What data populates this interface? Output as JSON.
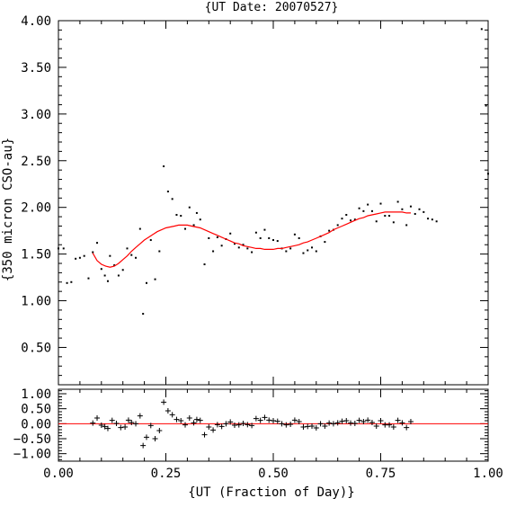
{
  "chart_data": [
    {
      "type": "scatter",
      "panel": "main",
      "title": "{UT Date: 20070527}",
      "xlabel": "",
      "ylabel": "{350 micron CSO-au}",
      "xlim": [
        0.0,
        1.0
      ],
      "ylim": [
        0.1,
        4.0
      ],
      "yticks": [
        {
          "value": 0.5,
          "label": "0.50"
        },
        {
          "value": 1.0,
          "label": "1.00"
        },
        {
          "value": 1.5,
          "label": "1.50"
        },
        {
          "value": 2.0,
          "label": "2.00"
        },
        {
          "value": 2.5,
          "label": "2.50"
        },
        {
          "value": 3.0,
          "label": "3.00"
        },
        {
          "value": 3.5,
          "label": "3.50"
        },
        {
          "value": 4.0,
          "label": "4.00"
        }
      ],
      "grid": false,
      "marker_color": "#000000",
      "fit_color": "#ff0000",
      "series": [
        {
          "marker": "dot",
          "points": [
            [
              0.0,
              1.56
            ],
            [
              0.012,
              1.56
            ],
            [
              0.02,
              1.19
            ],
            [
              0.03,
              1.2
            ],
            [
              0.04,
              1.45
            ],
            [
              0.05,
              1.46
            ],
            [
              0.06,
              1.48
            ],
            [
              0.07,
              1.24
            ],
            [
              0.08,
              1.52
            ],
            [
              0.09,
              1.62
            ],
            [
              0.1,
              1.34
            ],
            [
              0.108,
              1.27
            ],
            [
              0.115,
              1.21
            ],
            [
              0.12,
              1.48
            ],
            [
              0.13,
              1.38
            ],
            [
              0.14,
              1.27
            ],
            [
              0.15,
              1.33
            ],
            [
              0.16,
              1.56
            ],
            [
              0.17,
              1.49
            ],
            [
              0.18,
              1.46
            ],
            [
              0.19,
              1.77
            ],
            [
              0.197,
              0.86
            ],
            [
              0.205,
              1.19
            ],
            [
              0.215,
              1.65
            ],
            [
              0.225,
              1.23
            ],
            [
              0.235,
              1.53
            ],
            [
              0.245,
              2.44
            ],
            [
              0.255,
              2.17
            ],
            [
              0.265,
              2.09
            ],
            [
              0.275,
              1.92
            ],
            [
              0.285,
              1.91
            ],
            [
              0.295,
              1.77
            ],
            [
              0.305,
              2.0
            ],
            [
              0.315,
              1.81
            ],
            [
              0.322,
              1.94
            ],
            [
              0.33,
              1.87
            ],
            [
              0.34,
              1.39
            ],
            [
              0.35,
              1.67
            ],
            [
              0.36,
              1.53
            ],
            [
              0.37,
              1.68
            ],
            [
              0.38,
              1.59
            ],
            [
              0.39,
              1.66
            ],
            [
              0.4,
              1.72
            ],
            [
              0.41,
              1.61
            ],
            [
              0.42,
              1.57
            ],
            [
              0.43,
              1.6
            ],
            [
              0.44,
              1.56
            ],
            [
              0.45,
              1.52
            ],
            [
              0.46,
              1.73
            ],
            [
              0.47,
              1.67
            ],
            [
              0.48,
              1.76
            ],
            [
              0.49,
              1.67
            ],
            [
              0.5,
              1.65
            ],
            [
              0.51,
              1.64
            ],
            [
              0.52,
              1.56
            ],
            [
              0.53,
              1.53
            ],
            [
              0.54,
              1.56
            ],
            [
              0.55,
              1.71
            ],
            [
              0.56,
              1.67
            ],
            [
              0.57,
              1.51
            ],
            [
              0.58,
              1.54
            ],
            [
              0.59,
              1.57
            ],
            [
              0.6,
              1.53
            ],
            [
              0.61,
              1.69
            ],
            [
              0.62,
              1.63
            ],
            [
              0.63,
              1.75
            ],
            [
              0.64,
              1.76
            ],
            [
              0.65,
              1.81
            ],
            [
              0.66,
              1.88
            ],
            [
              0.67,
              1.92
            ],
            [
              0.68,
              1.86
            ],
            [
              0.69,
              1.87
            ],
            [
              0.7,
              1.99
            ],
            [
              0.71,
              1.96
            ],
            [
              0.72,
              2.03
            ],
            [
              0.73,
              1.96
            ],
            [
              0.74,
              1.85
            ],
            [
              0.75,
              2.04
            ],
            [
              0.76,
              1.91
            ],
            [
              0.77,
              1.91
            ],
            [
              0.78,
              1.84
            ],
            [
              0.79,
              2.06
            ],
            [
              0.8,
              1.98
            ],
            [
              0.81,
              1.81
            ],
            [
              0.82,
              2.01
            ],
            [
              0.83,
              1.93
            ],
            [
              0.84,
              1.98
            ],
            [
              0.85,
              1.95
            ],
            [
              0.86,
              1.88
            ],
            [
              0.87,
              1.87
            ],
            [
              0.88,
              1.85
            ],
            [
              0.985,
              3.91
            ],
            [
              0.995,
              3.09
            ],
            [
              1.0,
              2.36
            ]
          ]
        },
        {
          "marker": "line",
          "points": [
            [
              0.08,
              1.51
            ],
            [
              0.09,
              1.43
            ],
            [
              0.1,
              1.39
            ],
            [
              0.11,
              1.37
            ],
            [
              0.12,
              1.36
            ],
            [
              0.13,
              1.37
            ],
            [
              0.14,
              1.4
            ],
            [
              0.15,
              1.44
            ],
            [
              0.16,
              1.48
            ],
            [
              0.17,
              1.53
            ],
            [
              0.18,
              1.57
            ],
            [
              0.19,
              1.61
            ],
            [
              0.2,
              1.65
            ],
            [
              0.21,
              1.68
            ],
            [
              0.22,
              1.71
            ],
            [
              0.23,
              1.74
            ],
            [
              0.24,
              1.76
            ],
            [
              0.25,
              1.78
            ],
            [
              0.26,
              1.79
            ],
            [
              0.27,
              1.8
            ],
            [
              0.28,
              1.81
            ],
            [
              0.29,
              1.81
            ],
            [
              0.3,
              1.81
            ],
            [
              0.31,
              1.8
            ],
            [
              0.32,
              1.79
            ],
            [
              0.33,
              1.78
            ],
            [
              0.34,
              1.76
            ],
            [
              0.35,
              1.74
            ],
            [
              0.36,
              1.72
            ],
            [
              0.37,
              1.7
            ],
            [
              0.38,
              1.68
            ],
            [
              0.39,
              1.66
            ],
            [
              0.4,
              1.64
            ],
            [
              0.41,
              1.62
            ],
            [
              0.42,
              1.61
            ],
            [
              0.43,
              1.59
            ],
            [
              0.44,
              1.58
            ],
            [
              0.45,
              1.57
            ],
            [
              0.46,
              1.56
            ],
            [
              0.47,
              1.56
            ],
            [
              0.48,
              1.55
            ],
            [
              0.49,
              1.55
            ],
            [
              0.5,
              1.55
            ],
            [
              0.51,
              1.56
            ],
            [
              0.52,
              1.56
            ],
            [
              0.53,
              1.57
            ],
            [
              0.54,
              1.58
            ],
            [
              0.55,
              1.59
            ],
            [
              0.56,
              1.6
            ],
            [
              0.57,
              1.62
            ],
            [
              0.58,
              1.63
            ],
            [
              0.59,
              1.65
            ],
            [
              0.6,
              1.67
            ],
            [
              0.61,
              1.69
            ],
            [
              0.62,
              1.71
            ],
            [
              0.63,
              1.73
            ],
            [
              0.64,
              1.76
            ],
            [
              0.65,
              1.78
            ],
            [
              0.66,
              1.8
            ],
            [
              0.67,
              1.82
            ],
            [
              0.68,
              1.84
            ],
            [
              0.69,
              1.86
            ],
            [
              0.7,
              1.88
            ],
            [
              0.71,
              1.89
            ],
            [
              0.72,
              1.91
            ],
            [
              0.73,
              1.92
            ],
            [
              0.74,
              1.93
            ],
            [
              0.75,
              1.94
            ],
            [
              0.76,
              1.95
            ],
            [
              0.77,
              1.95
            ],
            [
              0.78,
              1.95
            ],
            [
              0.79,
              1.95
            ],
            [
              0.8,
              1.95
            ],
            [
              0.81,
              1.94
            ],
            [
              0.82,
              1.94
            ]
          ]
        }
      ]
    },
    {
      "type": "scatter",
      "panel": "residuals",
      "title": "",
      "xlabel": "{UT (Fraction of Day)}",
      "ylabel": "",
      "xlim": [
        0.0,
        1.0
      ],
      "ylim": [
        -1.25,
        1.15
      ],
      "xticks": [
        {
          "value": 0.0,
          "label": "0.00"
        },
        {
          "value": 0.25,
          "label": "0.25"
        },
        {
          "value": 0.5,
          "label": "0.50"
        },
        {
          "value": 0.75,
          "label": "0.75"
        },
        {
          "value": 1.0,
          "label": "1.00"
        }
      ],
      "yticks": [
        {
          "value": -1.0,
          "label": "−1.00"
        },
        {
          "value": -0.5,
          "label": "−0.50"
        },
        {
          "value": 0.0,
          "label": "0.00"
        },
        {
          "value": 0.5,
          "label": "0.50"
        },
        {
          "value": 1.0,
          "label": "1.00"
        }
      ],
      "grid": false,
      "marker_color": "#000000",
      "zero_line_color": "#ff0000",
      "series": [
        {
          "marker": "plus",
          "points": [
            [
              0.08,
              0.02
            ],
            [
              0.09,
              0.19
            ],
            [
              0.1,
              -0.05
            ],
            [
              0.108,
              -0.1
            ],
            [
              0.115,
              -0.16
            ],
            [
              0.125,
              0.11
            ],
            [
              0.135,
              0.01
            ],
            [
              0.145,
              -0.13
            ],
            [
              0.155,
              -0.11
            ],
            [
              0.163,
              0.12
            ],
            [
              0.17,
              0.04
            ],
            [
              0.18,
              0.0
            ],
            [
              0.19,
              0.26
            ],
            [
              0.197,
              -0.73
            ],
            [
              0.205,
              -0.45
            ],
            [
              0.215,
              -0.06
            ],
            [
              0.225,
              -0.5
            ],
            [
              0.235,
              -0.23
            ],
            [
              0.245,
              0.72
            ],
            [
              0.255,
              0.43
            ],
            [
              0.265,
              0.3
            ],
            [
              0.275,
              0.14
            ],
            [
              0.285,
              0.1
            ],
            [
              0.295,
              -0.04
            ],
            [
              0.305,
              0.19
            ],
            [
              0.315,
              0.03
            ],
            [
              0.322,
              0.14
            ],
            [
              0.33,
              0.11
            ],
            [
              0.34,
              -0.37
            ],
            [
              0.35,
              -0.11
            ],
            [
              0.36,
              -0.21
            ],
            [
              0.37,
              -0.03
            ],
            [
              0.38,
              -0.09
            ],
            [
              0.39,
              0.0
            ],
            [
              0.4,
              0.06
            ],
            [
              0.41,
              -0.05
            ],
            [
              0.42,
              -0.04
            ],
            [
              0.43,
              0.01
            ],
            [
              0.44,
              -0.03
            ],
            [
              0.45,
              -0.06
            ],
            [
              0.46,
              0.17
            ],
            [
              0.47,
              0.11
            ],
            [
              0.48,
              0.21
            ],
            [
              0.49,
              0.12
            ],
            [
              0.5,
              0.1
            ],
            [
              0.51,
              0.08
            ],
            [
              0.52,
              0.0
            ],
            [
              0.53,
              -0.04
            ],
            [
              0.54,
              -0.02
            ],
            [
              0.55,
              0.12
            ],
            [
              0.56,
              0.07
            ],
            [
              0.57,
              -0.11
            ],
            [
              0.58,
              -0.09
            ],
            [
              0.59,
              -0.08
            ],
            [
              0.6,
              -0.14
            ],
            [
              0.61,
              0.0
            ],
            [
              0.62,
              -0.08
            ],
            [
              0.63,
              0.02
            ],
            [
              0.64,
              0.0
            ],
            [
              0.65,
              0.03
            ],
            [
              0.66,
              0.08
            ],
            [
              0.67,
              0.1
            ],
            [
              0.68,
              0.02
            ],
            [
              0.69,
              0.01
            ],
            [
              0.7,
              0.11
            ],
            [
              0.71,
              0.07
            ],
            [
              0.72,
              0.12
            ],
            [
              0.73,
              0.04
            ],
            [
              0.74,
              -0.08
            ],
            [
              0.75,
              0.1
            ],
            [
              0.76,
              -0.04
            ],
            [
              0.77,
              -0.04
            ],
            [
              0.78,
              -0.11
            ],
            [
              0.79,
              0.11
            ],
            [
              0.8,
              0.03
            ],
            [
              0.81,
              -0.13
            ],
            [
              0.82,
              0.07
            ]
          ]
        }
      ]
    }
  ]
}
